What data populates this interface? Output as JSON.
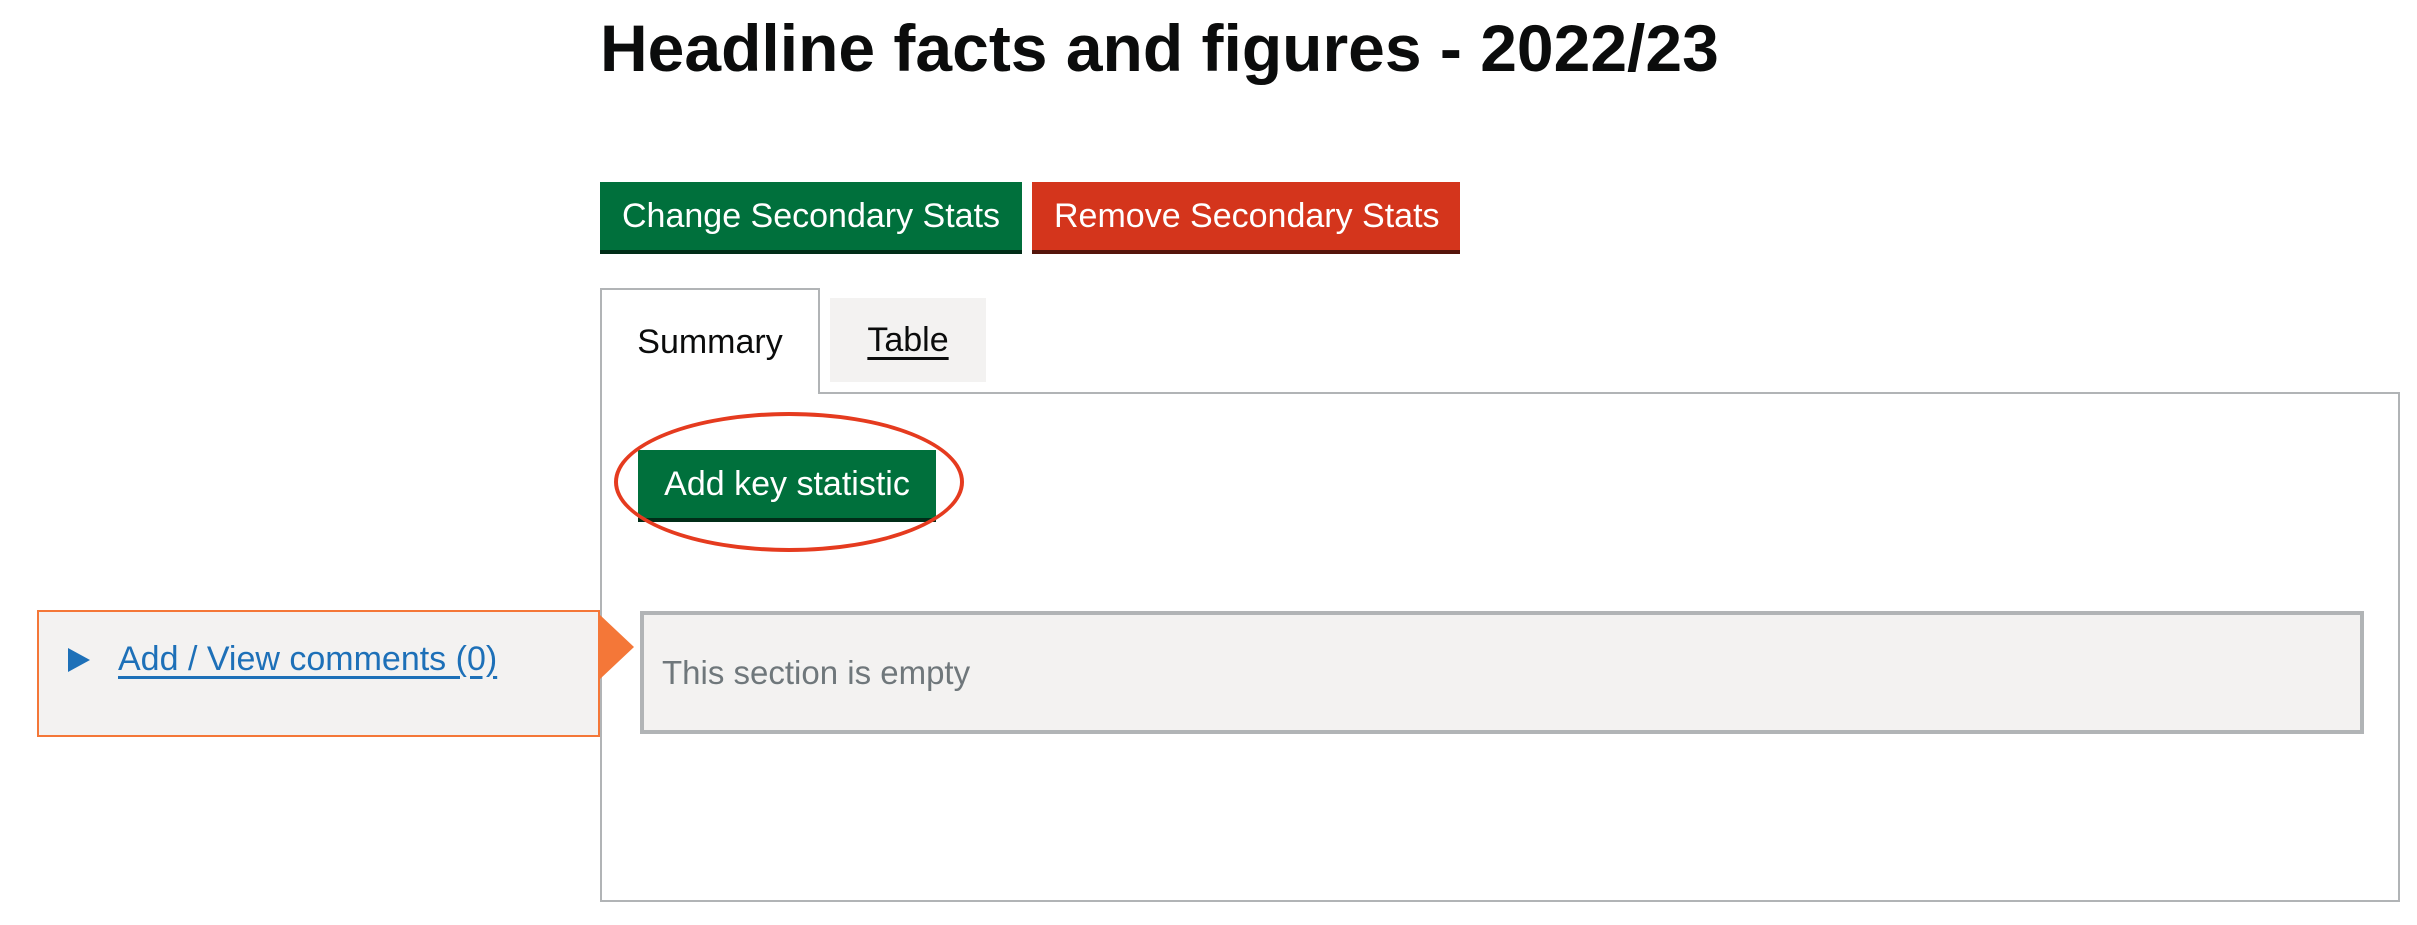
{
  "page": {
    "title": "Headline facts and figures - 2022/23"
  },
  "actions": {
    "change_label": "Change Secondary Stats",
    "remove_label": "Remove Secondary Stats"
  },
  "tabs": [
    {
      "label": "Summary",
      "selected": true
    },
    {
      "label": "Table",
      "selected": false
    }
  ],
  "summary_panel": {
    "add_button_label": "Add key statistic",
    "empty_message": "This section is empty"
  },
  "comments": {
    "toggle_label": "Add / View comments (0)",
    "icon": "triangle-right-icon"
  },
  "colors": {
    "primary_green": "#00703c",
    "danger_red": "#d4351c",
    "link_blue": "#1d70b8",
    "comment_orange": "#f47738",
    "highlight_ring": "#e53b1f"
  }
}
